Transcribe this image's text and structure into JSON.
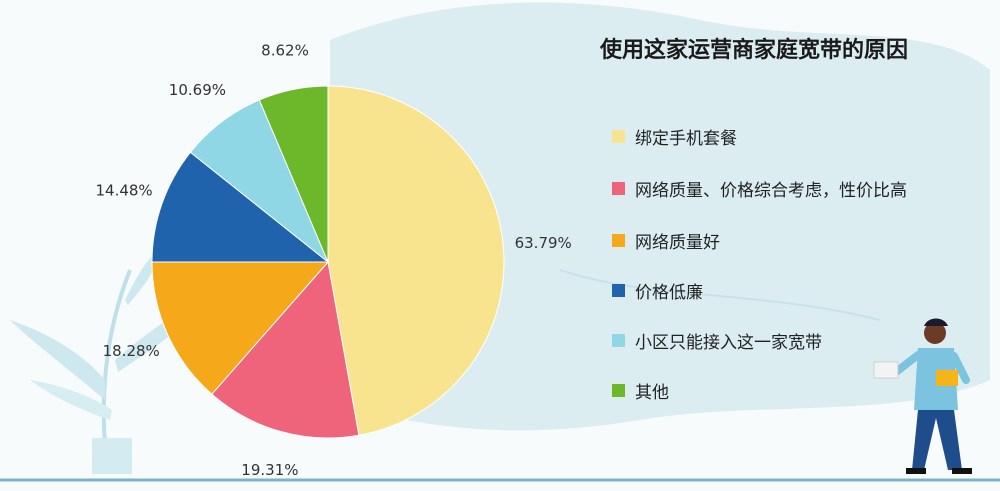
{
  "chart_data": {
    "type": "pie",
    "title": "使用这家运营商家庭宽带的原因",
    "categories": [
      "绑定手机套餐",
      "网络质量、价格综合考虑，性价比高",
      "网络质量好",
      "价格低廉",
      "小区只能接入这一家宽带",
      "其他"
    ],
    "values": [
      63.79,
      19.31,
      18.28,
      14.48,
      10.69,
      8.62
    ],
    "labels": [
      "63.79%",
      "19.31%",
      "18.28%",
      "14.48%",
      "10.69%",
      "8.62%"
    ],
    "colors": [
      "#f8e48f",
      "#f0647b",
      "#f4a81a",
      "#1f63ad",
      "#8fd7e5",
      "#6cb72a"
    ],
    "legend_position": "right",
    "grid": false
  }
}
